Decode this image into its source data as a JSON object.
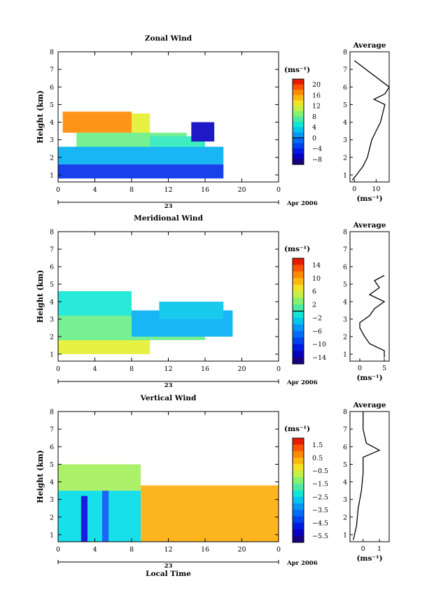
{
  "chart_data": [
    {
      "type": "heatmap",
      "title": "Zonal Wind",
      "ylabel": "Height (km)",
      "xlabel": "",
      "xlim": [
        0,
        24
      ],
      "ylim": [
        0.6,
        8
      ],
      "x_ticks": [
        "0",
        "4",
        "8",
        "12",
        "16",
        "20",
        "0"
      ],
      "y_ticks": [
        "1",
        "2",
        "3",
        "4",
        "5",
        "6",
        "7",
        "8"
      ],
      "date_day": "23",
      "date_label": "Apr 2006",
      "colorbar": {
        "unit": "(ms⁻¹)",
        "range": [
          -10,
          22
        ],
        "ticks": [
          "20",
          "16",
          "12",
          "8",
          "4",
          "0",
          "−4",
          "−8"
        ],
        "zero_contour": 0
      },
      "regions": [
        {
          "t": [
            0.5,
            8
          ],
          "h": [
            3.4,
            4.6
          ],
          "value": 17
        },
        {
          "t": [
            8,
            10
          ],
          "h": [
            3.0,
            4.5
          ],
          "value": 12
        },
        {
          "t": [
            2,
            14
          ],
          "h": [
            2.5,
            3.4
          ],
          "value": 8
        },
        {
          "t": [
            10,
            16
          ],
          "h": [
            2.0,
            3.2
          ],
          "value": 6
        },
        {
          "t": [
            0,
            18
          ],
          "h": [
            1.6,
            2.6
          ],
          "value": 2
        },
        {
          "t": [
            0,
            18
          ],
          "h": [
            0.8,
            1.6
          ],
          "value": -4
        },
        {
          "t": [
            14.5,
            17
          ],
          "h": [
            2.9,
            4.0
          ],
          "value": -7
        }
      ],
      "profile": {
        "title": "Average",
        "xlabel": "(ms⁻¹)",
        "x_ticks": [
          "0",
          "10"
        ],
        "xlim": [
          -2,
          16
        ],
        "heights": [
          0.7,
          1.0,
          1.5,
          2.0,
          2.5,
          3.0,
          3.5,
          4.0,
          4.5,
          5.0,
          5.3,
          5.6,
          6.0,
          7.5
        ],
        "values": [
          -1,
          1,
          4,
          6,
          7,
          8,
          10,
          12,
          13,
          14,
          9,
          14,
          16,
          0
        ]
      }
    },
    {
      "type": "heatmap",
      "title": "Meridional Wind",
      "ylabel": "Height (km)",
      "xlabel": "",
      "xlim": [
        0,
        24
      ],
      "ylim": [
        0.6,
        8
      ],
      "x_ticks": [
        "0",
        "4",
        "8",
        "12",
        "16",
        "20",
        "0"
      ],
      "y_ticks": [
        "1",
        "2",
        "3",
        "4",
        "5",
        "6",
        "7",
        "8"
      ],
      "date_day": "23",
      "date_label": "Apr 2006",
      "colorbar": {
        "unit": "(ms⁻¹)",
        "range": [
          -16,
          16
        ],
        "ticks": [
          "14",
          "10",
          "6",
          "2",
          "−2",
          "−6",
          "−10",
          "−14"
        ],
        "zero_contour": 0
      },
      "regions": [
        {
          "t": [
            0,
            10
          ],
          "h": [
            1.0,
            1.8
          ],
          "value": 6
        },
        {
          "t": [
            0,
            16
          ],
          "h": [
            1.8,
            3.2
          ],
          "value": 2
        },
        {
          "t": [
            0,
            8
          ],
          "h": [
            3.2,
            4.6
          ],
          "value": -1
        },
        {
          "t": [
            8,
            19
          ],
          "h": [
            2.0,
            3.5
          ],
          "value": -4
        },
        {
          "t": [
            11,
            18
          ],
          "h": [
            3.0,
            4.0
          ],
          "value": -3
        }
      ],
      "profile": {
        "title": "Average",
        "xlabel": "(ms⁻¹)",
        "x_ticks": [
          "0",
          "5"
        ],
        "xlim": [
          -2,
          6
        ],
        "heights": [
          0.8,
          1.2,
          1.6,
          2.0,
          2.5,
          2.8,
          3.2,
          3.6,
          4.0,
          4.4,
          4.8,
          5.2,
          5.5
        ],
        "values": [
          5,
          5,
          2,
          1,
          0,
          0,
          2,
          3,
          5,
          2,
          4,
          3,
          5
        ]
      }
    },
    {
      "type": "heatmap",
      "title": "Vertical Wind",
      "ylabel": "Height (km)",
      "xlabel": "Local Time",
      "xlim": [
        0,
        24
      ],
      "ylim": [
        0.6,
        8
      ],
      "x_ticks": [
        "0",
        "4",
        "8",
        "12",
        "16",
        "20",
        "0"
      ],
      "y_ticks": [
        "1",
        "2",
        "3",
        "4",
        "5",
        "6",
        "7",
        "8"
      ],
      "date_day": "23",
      "date_label": "Apr 2006",
      "colorbar": {
        "unit": "(ms⁻¹)",
        "range": [
          -6,
          2
        ],
        "ticks": [
          "1.5",
          "0.5",
          "−0.5",
          "−1.5",
          "−2.5",
          "−3.5",
          "−4.5",
          "−5.5"
        ],
        "zero_contour": null
      },
      "regions": [
        {
          "t": [
            0,
            9
          ],
          "h": [
            3.5,
            5.0
          ],
          "value": -1.0
        },
        {
          "t": [
            0,
            9
          ],
          "h": [
            0.6,
            3.5
          ],
          "value": -2.5
        },
        {
          "t": [
            2.5,
            3.2
          ],
          "h": [
            0.6,
            3.2
          ],
          "value": -5.0
        },
        {
          "t": [
            4.8,
            5.5
          ],
          "h": [
            0.6,
            3.5
          ],
          "value": -4.0
        },
        {
          "t": [
            9,
            24
          ],
          "h": [
            0.6,
            3.8
          ],
          "value": 0.4
        }
      ],
      "profile": {
        "title": "Average",
        "xlabel": "(ms⁻¹)",
        "x_ticks": [
          "0",
          "1"
        ],
        "xlim": [
          -0.8,
          1.6
        ],
        "heights": [
          0.7,
          1.5,
          2.5,
          3.5,
          4.5,
          5.4,
          5.8,
          6.2,
          7.0,
          8.0
        ],
        "values": [
          -0.6,
          -0.4,
          -0.3,
          -0.1,
          0.0,
          0.0,
          1.0,
          0.2,
          0.0,
          0.0
        ]
      }
    }
  ]
}
